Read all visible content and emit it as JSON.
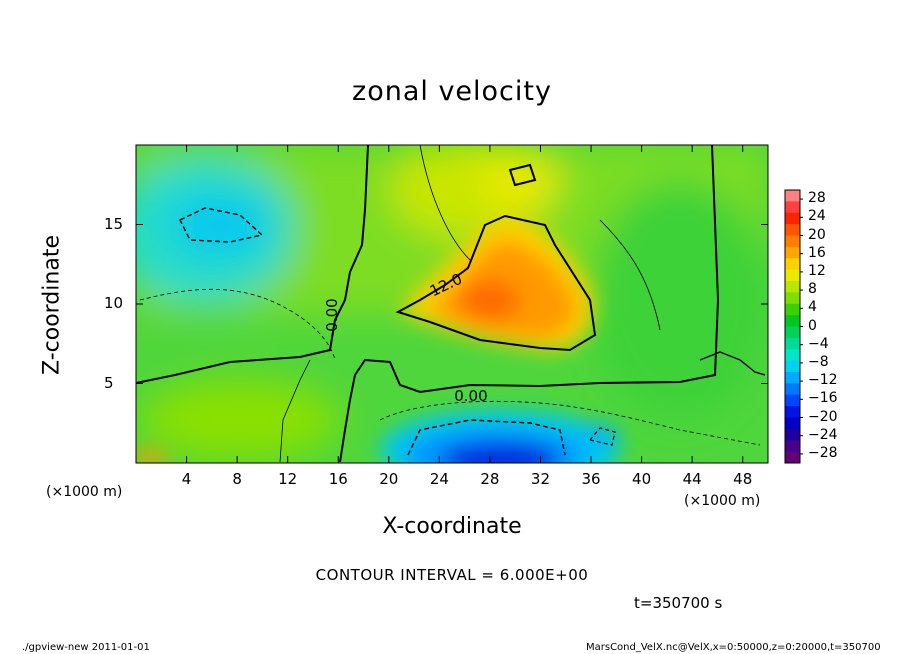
{
  "chart_data": {
    "type": "heatmap",
    "title": "zonal velocity",
    "xlabel": "X-coordinate",
    "ylabel": "Z-coordinate",
    "x_unit": "(×1000 m)",
    "x_unit_right": "(×1000 m)",
    "xlim": [
      0,
      50
    ],
    "ylim": [
      0,
      20
    ],
    "x_ticks": [
      "4",
      "8",
      "12",
      "16",
      "20",
      "24",
      "28",
      "32",
      "36",
      "40",
      "44",
      "48"
    ],
    "x_tick_values": [
      4,
      8,
      12,
      16,
      20,
      24,
      28,
      32,
      36,
      40,
      44,
      48
    ],
    "y_ticks": [
      "5",
      "10",
      "15"
    ],
    "y_tick_values": [
      5,
      10,
      15
    ],
    "contour_labels": [
      {
        "text": "12.0",
        "x": 24.5,
        "y": 11.2
      },
      {
        "text": "0.00",
        "x": 15.5,
        "y": 9.3
      },
      {
        "text": "0.00",
        "x": 26.5,
        "y": 4.2
      }
    ],
    "colorbar": {
      "labels": [
        "28",
        "24",
        "20",
        "16",
        "12",
        "8",
        "4",
        "0",
        "−4",
        "−8",
        "−12",
        "−16",
        "−20",
        "−24",
        "−28"
      ],
      "colors": [
        "#ff8080",
        "#ff4040",
        "#ff2400",
        "#ff5500",
        "#ff7d00",
        "#ffa500",
        "#ffd000",
        "#eaea00",
        "#b8e600",
        "#7dde00",
        "#3cd200",
        "#00c820",
        "#00d25a",
        "#00dc96",
        "#00e6c8",
        "#00d2f0",
        "#00aaff",
        "#0078ff",
        "#0046ff",
        "#0014e6",
        "#0000c8",
        "#1e00a0",
        "#46008c",
        "#640078"
      ],
      "range": [
        -30,
        30
      ]
    },
    "contour_interval": "CONTOUR INTERVAL = 6.000E+00",
    "time": "t=350700 s",
    "footer_left": "./gpview-new   2011-01-01",
    "footer_right": "MarsCond_VelX.nc@VelX,x=0:50000,z=0:20000,t=350700",
    "colors": {
      "background": "#ffffff",
      "field_base": "#4fd63c"
    }
  }
}
